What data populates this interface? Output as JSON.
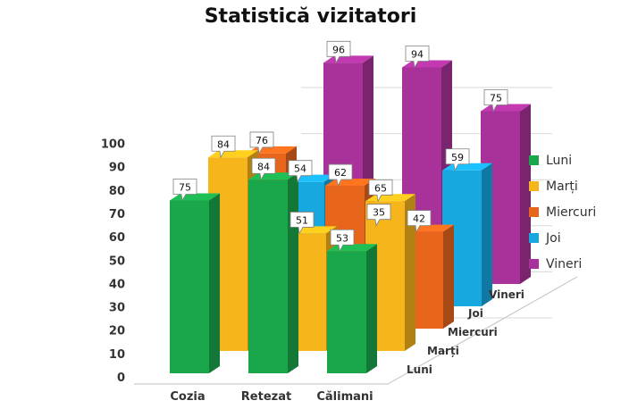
{
  "chart_data": {
    "type": "bar",
    "subtype": "3d-column",
    "title": "Statistică vizitatori",
    "categories": [
      "Cozia",
      "Retezat",
      "Călimani"
    ],
    "series": [
      {
        "name": "Luni",
        "values": [
          75,
          84,
          53
        ],
        "color": "#1aa64a"
      },
      {
        "name": "Marți",
        "values": [
          84,
          51,
          65
        ],
        "color": "#f6b51a"
      },
      {
        "name": "Miercuri",
        "values": [
          76,
          62,
          42
        ],
        "color": "#e8661c"
      },
      {
        "name": "Joi",
        "values": [
          54,
          35,
          59
        ],
        "color": "#18a8e0"
      },
      {
        "name": "Vineri",
        "values": [
          96,
          94,
          75
        ],
        "color": "#a9329a"
      }
    ],
    "y_ticks": [
      "0",
      "10",
      "20",
      "30",
      "40",
      "50",
      "60",
      "70",
      "80",
      "90",
      "100"
    ],
    "ylim": [
      0,
      100
    ],
    "grid": true,
    "legend_position": "right",
    "data_labels": true
  }
}
